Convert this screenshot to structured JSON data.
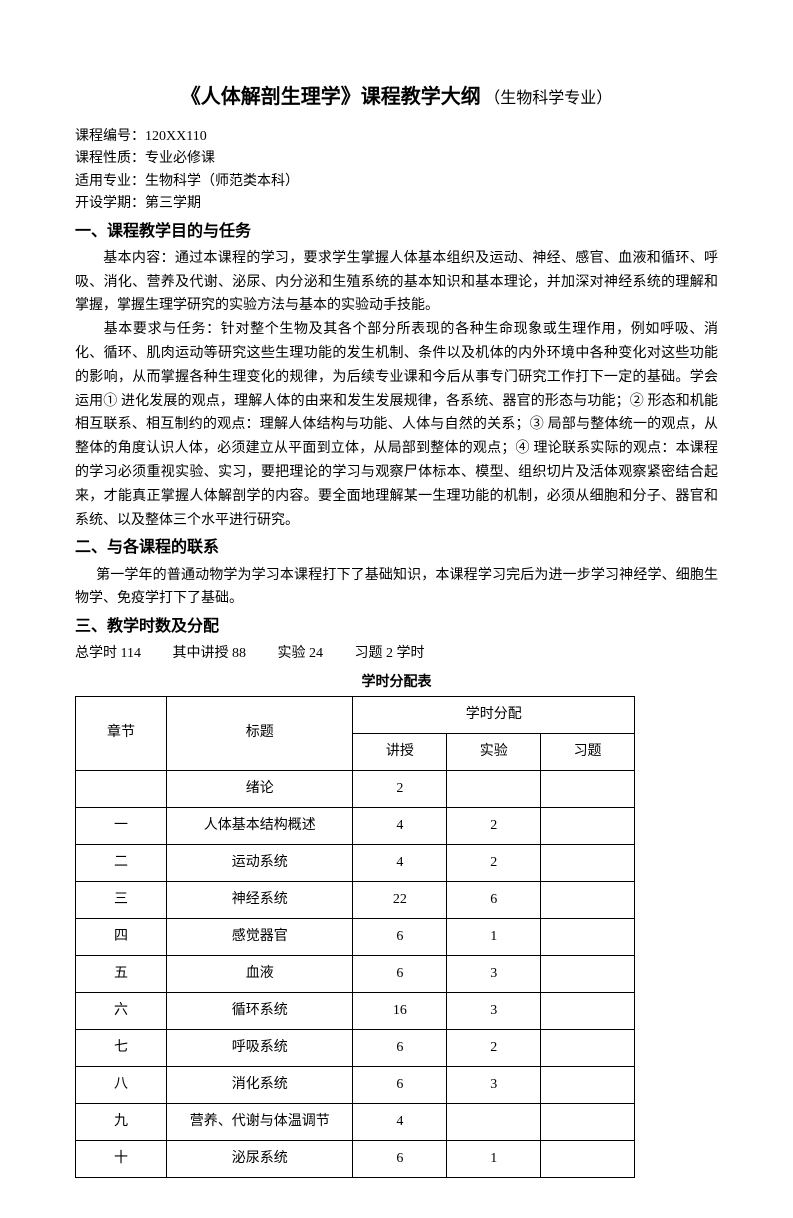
{
  "title": {
    "main": "《人体解剖生理学》课程教学大纲",
    "sub": "（生物科学专业）"
  },
  "meta": {
    "code_label": "课程编号：",
    "code_value": "120XX110",
    "nature_label": "课程性质：",
    "nature_value": "专业必修课",
    "major_label": "适用专业：",
    "major_value": "生物科学（师范类本科）",
    "semester_label": "开设学期：",
    "semester_value": "第三学期"
  },
  "section1": {
    "heading": "一、课程教学目的与任务",
    "p1": "基本内容：通过本课程的学习，要求学生掌握人体基本组织及运动、神经、感官、血液和循环、呼吸、消化、营养及代谢、泌尿、内分泌和生殖系统的基本知识和基本理论，并加深对神经系统的理解和掌握，掌握生理学研究的实验方法与基本的实验动手技能。",
    "p2": "基本要求与任务：针对整个生物及其各个部分所表现的各种生命现象或生理作用，例如呼吸、消化、循环、肌肉运动等研究这些生理功能的发生机制、条件以及机体的内外环境中各种变化对这些功能的影响，从而掌握各种生理变化的规律，为后续专业课和今后从事专门研究工作打下一定的基础。学会运用① 进化发展的观点，理解人体的由来和发生发展规律，各系统、器官的形态与功能；② 形态和机能相互联系、相互制约的观点：理解人体结构与功能、人体与自然的关系；③ 局部与整体统一的观点，从整体的角度认识人体，必须建立从平面到立体，从局部到整体的观点；④ 理论联系实际的观点：本课程的学习必须重视实验、实习，要把理论的学习与观察尸体标本、模型、组织切片及活体观察紧密结合起来，才能真正掌握人体解剖学的内容。要全面地理解某一生理功能的机制，必须从细胞和分子、器官和系统、以及整体三个水平进行研究。"
  },
  "section2": {
    "heading": "二、与各课程的联系",
    "p1": "第一学年的普通动物学为学习本课程打下了基础知识，本课程学习完后为进一步学习神经学、细胞生物学、免疫学打下了基础。"
  },
  "section3": {
    "heading": "三、教学时数及分配",
    "hours": {
      "total": "总学时 114",
      "lecture": "其中讲授 88",
      "lab": "实验 24",
      "exercise": "习题 2  学时"
    },
    "table_title": "学时分配表",
    "headers": {
      "chapter": "章节",
      "title": "标题",
      "alloc": "学时分配",
      "lecture": "讲授",
      "lab": "实验",
      "exercise": "习题"
    },
    "rows": [
      {
        "ch": "",
        "title": "绪论",
        "lec": "2",
        "lab": "",
        "ex": ""
      },
      {
        "ch": "一",
        "title": "人体基本结构概述",
        "lec": "4",
        "lab": "2",
        "ex": ""
      },
      {
        "ch": "二",
        "title": "运动系统",
        "lec": "4",
        "lab": "2",
        "ex": ""
      },
      {
        "ch": "三",
        "title": "神经系统",
        "lec": "22",
        "lab": "6",
        "ex": ""
      },
      {
        "ch": "四",
        "title": "感觉器官",
        "lec": "6",
        "lab": "1",
        "ex": ""
      },
      {
        "ch": "五",
        "title": "血液",
        "lec": "6",
        "lab": "3",
        "ex": ""
      },
      {
        "ch": "六",
        "title": "循环系统",
        "lec": "16",
        "lab": "3",
        "ex": ""
      },
      {
        "ch": "七",
        "title": "呼吸系统",
        "lec": "6",
        "lab": "2",
        "ex": ""
      },
      {
        "ch": "八",
        "title": "消化系统",
        "lec": "6",
        "lab": "3",
        "ex": ""
      },
      {
        "ch": "九",
        "title": "营养、代谢与体温调节",
        "lec": "4",
        "lab": "",
        "ex": ""
      },
      {
        "ch": "十",
        "title": "泌尿系统",
        "lec": "6",
        "lab": "1",
        "ex": ""
      }
    ]
  },
  "style": {
    "text_color": "#000000",
    "background_color": "#ffffff",
    "border_color": "#000000",
    "body_fontsize": 14,
    "title_fontsize": 20,
    "heading_fontsize": 16
  }
}
